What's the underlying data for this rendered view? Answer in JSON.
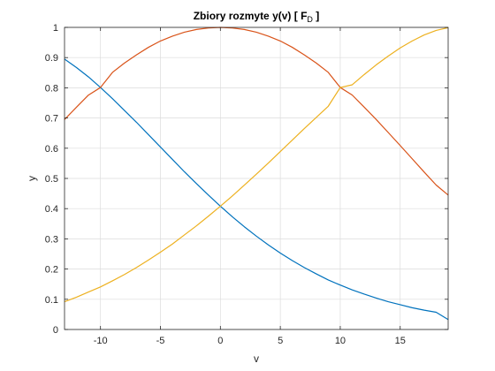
{
  "chart_data": {
    "type": "line",
    "title": "Zbiory  rozmyte  y(v)  [ ",
    "title_symbol": "F",
    "title_subscript": "D",
    "title_suffix": " ]",
    "xlabel": "v",
    "ylabel": "y",
    "xlim": [
      -13,
      19
    ],
    "ylim": [
      0,
      1
    ],
    "xticks": [
      -10,
      -5,
      0,
      5,
      10,
      15
    ],
    "xtick_labels": [
      "-10",
      "-5",
      "0",
      "5",
      "10",
      "15"
    ],
    "yticks": [
      0,
      0.1,
      0.2,
      0.3,
      0.4,
      0.5,
      0.6,
      0.7,
      0.8,
      0.9,
      1
    ],
    "ytick_labels": [
      "0",
      "0.1",
      "0.2",
      "0.3",
      "0.4",
      "0.5",
      "0.6",
      "0.7",
      "0.8",
      "0.9",
      "1"
    ],
    "grid": true,
    "x": [
      -13,
      -12,
      -11,
      -10,
      -9,
      -8,
      -7,
      -6,
      -5,
      -4,
      -3,
      -2,
      -1,
      0,
      1,
      2,
      3,
      4,
      5,
      6,
      7,
      8,
      9,
      10,
      11,
      12,
      13,
      14,
      15,
      16,
      17,
      18,
      19
    ],
    "series": [
      {
        "color": "#0072BD",
        "values": [
          0.895,
          0.867,
          0.836,
          0.801,
          0.764,
          0.725,
          0.686,
          0.645,
          0.604,
          0.563,
          0.522,
          0.483,
          0.445,
          0.408,
          0.373,
          0.34,
          0.309,
          0.28,
          0.253,
          0.228,
          0.205,
          0.184,
          0.164,
          0.147,
          0.131,
          0.117,
          0.104,
          0.092,
          0.082,
          0.072,
          0.064,
          0.057,
          0.033
        ]
      },
      {
        "color": "#D95319",
        "values": [
          0.695,
          0.736,
          0.776,
          0.801,
          0.851,
          0.882,
          0.909,
          0.934,
          0.955,
          0.971,
          0.984,
          0.993,
          0.998,
          1.0,
          0.998,
          0.993,
          0.984,
          0.971,
          0.955,
          0.934,
          0.909,
          0.882,
          0.851,
          0.801,
          0.776,
          0.736,
          0.695,
          0.652,
          0.609,
          0.565,
          0.521,
          0.478,
          0.445
        ]
      },
      {
        "color": "#EDB120",
        "values": [
          0.092,
          0.107,
          0.124,
          0.141,
          0.161,
          0.182,
          0.205,
          0.23,
          0.256,
          0.283,
          0.313,
          0.343,
          0.375,
          0.408,
          0.442,
          0.478,
          0.514,
          0.551,
          0.589,
          0.627,
          0.665,
          0.702,
          0.739,
          0.801,
          0.81,
          0.844,
          0.876,
          0.905,
          0.932,
          0.955,
          0.975,
          0.99,
          0.999
        ]
      }
    ]
  }
}
